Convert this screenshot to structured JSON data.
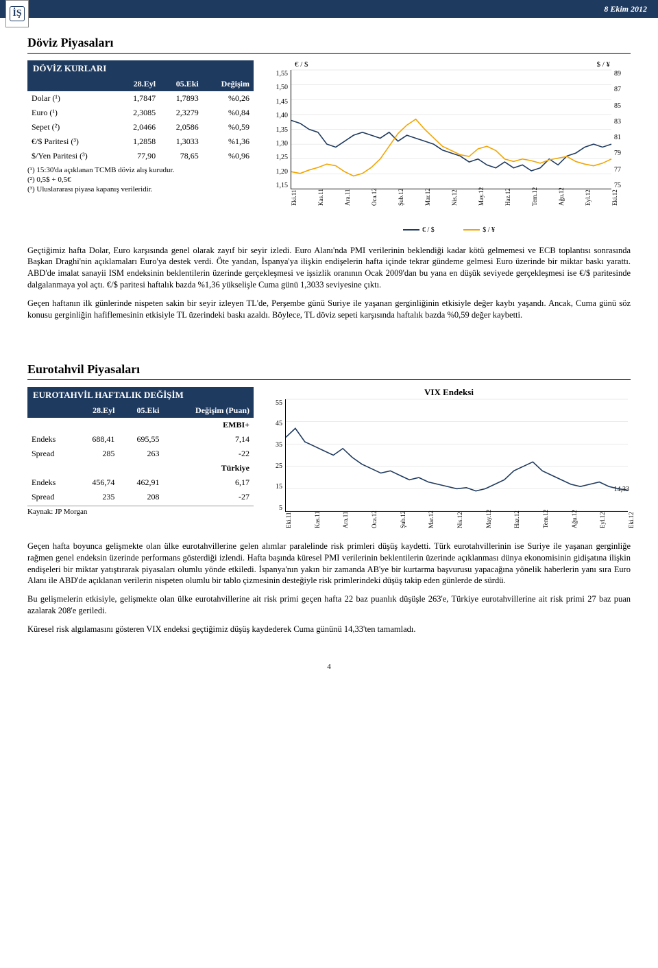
{
  "header_date": "8 Ekim 2012",
  "page_number": "4",
  "fx": {
    "section_title": "Döviz Piyasaları",
    "table_title": "DÖVİZ KURLARI",
    "col1": "28.Eyl",
    "col2": "05.Eki",
    "col3": "Değişim",
    "rows": {
      "dolar": {
        "label": "Dolar (¹)",
        "c1": "1,7847",
        "c2": "1,7893",
        "c3": "%0,26"
      },
      "euro": {
        "label": "Euro (¹)",
        "c1": "2,3085",
        "c2": "2,3279",
        "c3": "%0,84"
      },
      "sepet": {
        "label": "Sepet (²)",
        "c1": "2,0466",
        "c2": "2,0586",
        "c3": "%0,59"
      },
      "eurusd": {
        "label": "€/$ Paritesi (³)",
        "c1": "1,2858",
        "c2": "1,3033",
        "c3": "%1,36"
      },
      "usdjpy": {
        "label": "$/Yen Paritesi (³)",
        "c1": "77,90",
        "c2": "78,65",
        "c3": "%0,96"
      }
    },
    "footnotes": {
      "f1": "(¹) 15:30'da açıklanan TCMB döviz alış kurudur.",
      "f2": "(²) 0,5$ + 0,5€",
      "f3": "(³) Uluslararası piyasa kapanış verileridir."
    },
    "chart": {
      "left_title": "€ / $",
      "right_title": "$ / ¥",
      "y_left_ticks": [
        "1,55",
        "1,50",
        "1,45",
        "1,40",
        "1,35",
        "1,30",
        "1,25",
        "1,20",
        "1,15"
      ],
      "y_right_ticks": [
        "89",
        "87",
        "85",
        "83",
        "81",
        "79",
        "77",
        "75"
      ],
      "x_labels": [
        "Eki.11",
        "Kas.11",
        "Ara.11",
        "Oca.12",
        "Şub.12",
        "Mar.12",
        "Nis.12",
        "May.12",
        "Haz.12",
        "Tem.12",
        "Ağu.12",
        "Eyl.12",
        "Eki.12"
      ],
      "legend_left": "€ / $",
      "legend_right": "$ / ¥",
      "series1_color": "#1f3a5f",
      "series2_color": "#f2a500",
      "bg_color": "#ffffff",
      "series1_values": [
        1.38,
        1.37,
        1.35,
        1.34,
        1.3,
        1.29,
        1.31,
        1.33,
        1.34,
        1.33,
        1.32,
        1.34,
        1.31,
        1.33,
        1.32,
        1.31,
        1.3,
        1.28,
        1.27,
        1.26,
        1.24,
        1.25,
        1.23,
        1.22,
        1.24,
        1.22,
        1.23,
        1.21,
        1.22,
        1.25,
        1.23,
        1.26,
        1.27,
        1.29,
        1.3,
        1.29,
        1.3
      ],
      "series2_values": [
        77.0,
        76.8,
        77.2,
        77.5,
        77.9,
        77.7,
        77.0,
        76.5,
        76.8,
        77.5,
        78.5,
        80.0,
        81.5,
        82.5,
        83.2,
        82.0,
        81.0,
        80.0,
        79.5,
        79.0,
        78.8,
        79.7,
        80.0,
        79.5,
        78.5,
        78.2,
        78.5,
        78.3,
        78.0,
        78.4,
        78.6,
        78.8,
        78.2,
        77.9,
        77.7,
        78.0,
        78.5
      ],
      "ylim_left": [
        1.15,
        1.55
      ],
      "ylim_right": [
        75,
        89
      ]
    },
    "para1": "Geçtiğimiz hafta Dolar, Euro karşısında genel olarak zayıf bir seyir izledi. Euro Alanı'nda PMI verilerinin beklendiği kadar kötü gelmemesi ve ECB toplantısı sonrasında Başkan Draghi'nin açıklamaları Euro'ya destek verdi. Öte yandan, İspanya'ya ilişkin endişelerin hafta içinde tekrar gündeme gelmesi Euro üzerinde bir miktar baskı yarattı. ABD'de imalat sanayii ISM endeksinin beklentilerin üzerinde gerçekleşmesi ve işsizlik oranının Ocak 2009'dan bu yana en düşük seviyede gerçekleşmesi ise €/$ paritesinde dalgalanmaya yol açtı. €/$ paritesi haftalık bazda %1,36 yükselişle Cuma günü 1,3033 seviyesine çıktı.",
    "para2": "Geçen haftanın ilk günlerinde nispeten sakin bir seyir izleyen TL'de, Perşembe günü Suriye ile yaşanan gerginliğinin etkisiyle değer kaybı yaşandı. Ancak, Cuma günü söz konusu gerginliğin hafiflemesinin etkisiyle TL üzerindeki baskı azaldı. Böylece, TL döviz sepeti karşısında haftalık bazda %0,59 değer kaybetti."
  },
  "euro": {
    "section_title": "Eurotahvil Piyasaları",
    "table_title": "EUROTAHVİL HAFTALIK DEĞİŞİM",
    "col1": "28.Eyl",
    "col2": "05.Eki",
    "col3": "Değişim (Puan)",
    "group1": "EMBI+",
    "group2": "Türkiye",
    "rows": {
      "embi_endeks": {
        "label": "Endeks",
        "c1": "688,41",
        "c2": "695,55",
        "c3": "7,14"
      },
      "embi_spread": {
        "label": "Spread",
        "c1": "285",
        "c2": "263",
        "c3": "-22"
      },
      "tr_endeks": {
        "label": "Endeks",
        "c1": "456,74",
        "c2": "462,91",
        "c3": "6,17"
      },
      "tr_spread": {
        "label": "Spread",
        "c1": "235",
        "c2": "208",
        "c3": "-27"
      }
    },
    "source": "Kaynak: JP Morgan",
    "chart": {
      "title": "VIX Endeksi",
      "y_ticks": [
        "55",
        "45",
        "35",
        "25",
        "15",
        "5"
      ],
      "x_labels": [
        "Eki.11",
        "Kas.11",
        "Ara.11",
        "Oca.12",
        "Şub.12",
        "Mar.12",
        "Nis.12",
        "May.12",
        "Haz.12",
        "Tem.12",
        "Ağu.12",
        "Eyl.12",
        "Eki.12"
      ],
      "last_value_label": "14,33",
      "series_color": "#1f3a5f",
      "bg_color": "#ffffff",
      "ylim": [
        5,
        55
      ],
      "values": [
        38,
        42,
        36,
        34,
        32,
        30,
        33,
        29,
        26,
        24,
        22,
        23,
        21,
        19,
        20,
        18,
        17,
        16,
        15,
        15.5,
        14,
        15,
        17,
        19,
        23,
        25,
        27,
        23,
        21,
        19,
        17,
        16,
        17,
        18,
        16,
        15,
        14.33
      ]
    },
    "para1": "Geçen hafta boyunca gelişmekte olan ülke eurotahvillerine gelen alımlar paralelinde risk primleri düşüş kaydetti. Türk eurotahvillerinin ise Suriye ile yaşanan gerginliğe rağmen genel endeksin üzerinde performans gösterdiği izlendi. Hafta başında küresel PMI verilerinin beklentilerin üzerinde açıklanması dünya ekonomisinin gidişatına ilişkin endişeleri bir miktar yatıştırarak piyasaları olumlu yönde etkiledi. İspanya'nın yakın bir zamanda AB'ye bir kurtarma başvurusu yapacağına yönelik haberlerin yanı sıra Euro Alanı ile ABD'de açıklanan verilerin nispeten olumlu bir tablo çizmesinin desteğiyle risk primlerindeki düşüş takip eden günlerde de sürdü.",
    "para2": "Bu gelişmelerin etkisiyle, gelişmekte olan ülke eurotahvillerine ait risk primi geçen hafta 22 baz puanlık düşüşle 263'e, Türkiye eurotahvillerine ait risk primi 27 baz puan azalarak 208'e geriledi.",
    "para3": "Küresel risk algılamasını gösteren VIX endeksi geçtiğimiz düşüş kaydederek Cuma gününü 14,33'ten tamamladı."
  }
}
